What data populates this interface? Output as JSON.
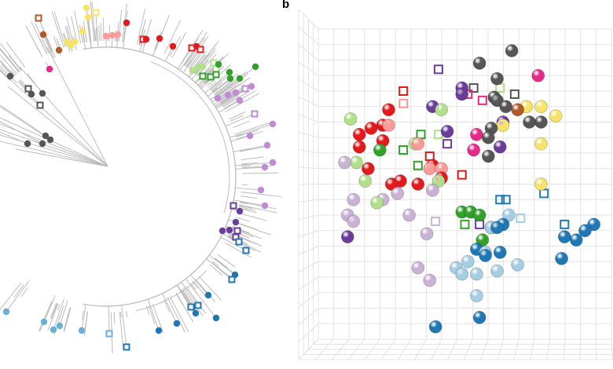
{
  "panel_b_label": "b",
  "palette": {
    "red": "#e31a1c",
    "pink": "#fb9a99",
    "lightgreen": "#b2df8a",
    "green": "#33a02c",
    "purple": "#6a3d9a",
    "lavender": "#cab2d6",
    "gray": "#555555",
    "magenta": "#e7298a",
    "yellow": "#f7e36a",
    "brown": "#b15928",
    "lightblue": "#a6cee3",
    "blue": "#1f78b4",
    "treeLavender": "#c08ad6",
    "treeLightblue": "#6baed6",
    "branch": "#bdbdbd",
    "grid": "#e3e3e3"
  },
  "chart_data": {
    "type": "scatter",
    "projection": "3d",
    "xlim": [
      0,
      100
    ],
    "ylim": [
      0,
      100
    ],
    "grid": true,
    "series": [
      {
        "color": "#555555",
        "marker": "sphere",
        "points": [
          [
            66,
            93
          ],
          [
            55,
            89
          ],
          [
            61,
            84
          ],
          [
            60,
            78
          ],
          [
            64,
            75
          ],
          [
            61,
            77
          ],
          [
            59,
            68
          ],
          [
            58,
            65
          ],
          [
            58,
            59
          ],
          [
            72,
            70
          ],
          [
            76,
            70
          ]
        ]
      },
      {
        "color": "#e7298a",
        "marker": "sphere",
        "points": [
          [
            75,
            85
          ],
          [
            54,
            66
          ],
          [
            53,
            61
          ]
        ]
      },
      {
        "color": "#f7e36a",
        "marker": "sphere",
        "points": [
          [
            81,
            72
          ],
          [
            76,
            75
          ],
          [
            71,
            75
          ],
          [
            76,
            63
          ],
          [
            76,
            50
          ],
          [
            63,
            69
          ]
        ]
      },
      {
        "color": "#b15928",
        "marker": "sphere",
        "points": [
          [
            68,
            74
          ]
        ]
      },
      {
        "color": "#6a3d9a",
        "marker": "sphere",
        "points": [
          [
            49,
            81
          ],
          [
            49,
            79
          ],
          [
            39,
            75
          ],
          [
            44,
            67
          ],
          [
            62,
            62
          ],
          [
            10,
            33
          ],
          [
            63,
            70
          ]
        ]
      },
      {
        "color": "#b2df8a",
        "marker": "sphere",
        "points": [
          [
            11,
            71
          ],
          [
            42,
            74
          ],
          [
            13,
            57
          ],
          [
            16,
            51
          ],
          [
            20,
            44
          ],
          [
            41,
            51
          ],
          [
            33,
            63
          ]
        ]
      },
      {
        "color": "#e31a1c",
        "marker": "sphere",
        "points": [
          [
            24,
            74
          ],
          [
            14,
            66
          ],
          [
            14,
            62
          ],
          [
            18,
            68
          ],
          [
            22,
            69
          ],
          [
            22,
            64
          ],
          [
            17,
            55
          ],
          [
            25,
            50
          ],
          [
            28,
            51
          ],
          [
            34,
            50
          ],
          [
            42,
            52
          ],
          [
            39,
            56
          ]
        ]
      },
      {
        "color": "#fb9a99",
        "marker": "sphere",
        "points": [
          [
            24,
            69
          ],
          [
            34,
            63
          ],
          [
            38,
            55
          ],
          [
            42,
            55
          ]
        ]
      },
      {
        "color": "#33a02c",
        "marker": "sphere",
        "points": [
          [
            21,
            61
          ],
          [
            49,
            41
          ],
          [
            52,
            41
          ],
          [
            55,
            40
          ],
          [
            56,
            32
          ],
          [
            59,
            36
          ]
        ]
      },
      {
        "color": "#cab2d6",
        "marker": "sphere",
        "points": [
          [
            9,
            57
          ],
          [
            12,
            45
          ],
          [
            10,
            40
          ],
          [
            12,
            38
          ],
          [
            31,
            40
          ],
          [
            22,
            45
          ],
          [
            27,
            47
          ],
          [
            39,
            48
          ],
          [
            37,
            34
          ],
          [
            34,
            23
          ],
          [
            38,
            19
          ]
        ]
      },
      {
        "color": "#a6cee3",
        "marker": "sphere",
        "points": [
          [
            51,
            25
          ],
          [
            47,
            23
          ],
          [
            49,
            21
          ],
          [
            54,
            21
          ],
          [
            54,
            14
          ],
          [
            57,
            28
          ],
          [
            61,
            22
          ],
          [
            68,
            24
          ],
          [
            65,
            40
          ],
          [
            59,
            36
          ]
        ]
      },
      {
        "color": "#1f78b4",
        "marker": "sphere",
        "points": [
          [
            40,
            4
          ],
          [
            55,
            7
          ],
          [
            54,
            29
          ],
          [
            57,
            27
          ],
          [
            62,
            28
          ],
          [
            61,
            36
          ],
          [
            63,
            37
          ],
          [
            83,
            26
          ],
          [
            84,
            33
          ],
          [
            88,
            32
          ],
          [
            91,
            35
          ],
          [
            94,
            37
          ]
        ]
      },
      {
        "color": "#e31a1c",
        "marker": "square",
        "points": [
          [
            29,
            80
          ],
          [
            38,
            59
          ],
          [
            49,
            53
          ]
        ]
      },
      {
        "color": "#fb9a99",
        "marker": "square",
        "points": [
          [
            29,
            76
          ]
        ]
      },
      {
        "color": "#6a3d9a",
        "marker": "square",
        "points": [
          [
            41,
            87
          ],
          [
            44,
            63
          ],
          [
            55,
            37
          ]
        ]
      },
      {
        "color": "#cab2d6",
        "marker": "square",
        "points": [
          [
            40,
            38
          ]
        ]
      },
      {
        "color": "#555555",
        "marker": "square",
        "points": [
          [
            53,
            81
          ],
          [
            67,
            79
          ]
        ]
      },
      {
        "color": "#b2df8a",
        "marker": "square",
        "points": [
          [
            62,
            81
          ],
          [
            41,
            66
          ]
        ]
      },
      {
        "color": "#e7298a",
        "marker": "square",
        "points": [
          [
            56,
            77
          ],
          [
            51,
            79
          ]
        ]
      },
      {
        "color": "#33a02c",
        "marker": "square",
        "points": [
          [
            35,
            66
          ],
          [
            29,
            61
          ],
          [
            34,
            56
          ],
          [
            50,
            37
          ]
        ]
      },
      {
        "color": "#1f78b4",
        "marker": "square",
        "points": [
          [
            62,
            45
          ],
          [
            64,
            45
          ],
          [
            77,
            47
          ],
          [
            84,
            37
          ]
        ]
      },
      {
        "color": "#a6cee3",
        "marker": "square",
        "points": [
          [
            69,
            39
          ]
        ]
      }
    ]
  }
}
